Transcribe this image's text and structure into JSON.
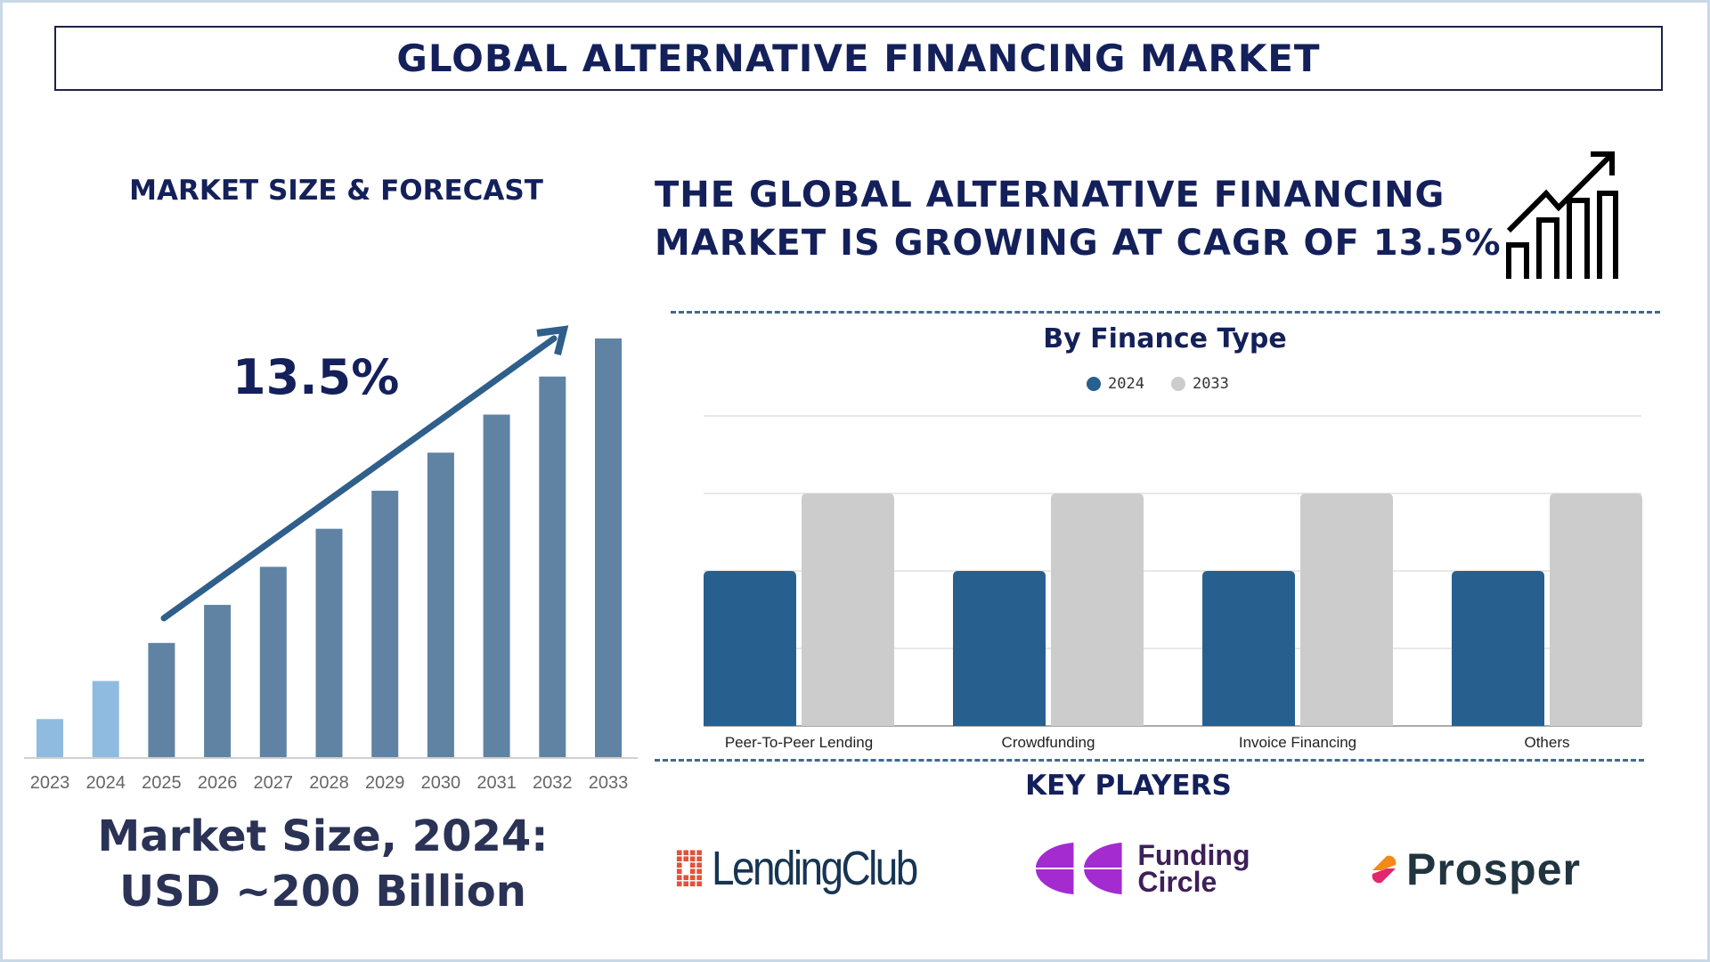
{
  "title": "GLOBAL ALTERNATIVE FINANCING MARKET",
  "left": {
    "subtitle": "MARKET SIZE & FORECAST",
    "cagr_label": "13.5%",
    "market_size_line1": "Market Size, 2024:",
    "market_size_line2": "USD ~200 Billion"
  },
  "headline": {
    "line1": "THE GLOBAL ALTERNATIVE FINANCING",
    "line2": "MARKET IS GROWING AT CAGR OF 13.5%",
    "icon": "growth-chart-icon"
  },
  "key_players": {
    "title": "KEY PLAYERS",
    "logos": [
      "LendingClub",
      "Funding Circle",
      "Prosper"
    ]
  },
  "colors": {
    "navy": "#13205a",
    "bar_forecast": "#6083a3",
    "bar_history": "#8fbbe0",
    "series_2024": "#27608f",
    "series_2033": "#cccccc",
    "arrow": "#2f5f8a"
  },
  "chart_data": [
    {
      "type": "bar",
      "title": "",
      "categories": [
        "2023",
        "2024",
        "2025",
        "2026",
        "2027",
        "2028",
        "2029",
        "2030",
        "2031",
        "2032",
        "2033"
      ],
      "values": [
        1,
        2,
        3,
        4,
        5,
        6,
        7,
        8,
        9,
        10,
        11
      ],
      "highlighted_history": [
        "2023",
        "2024"
      ],
      "annotation": "13.5%",
      "grid": false,
      "ylim": [
        0,
        11
      ]
    },
    {
      "type": "bar",
      "title": "By Finance Type",
      "categories": [
        "Peer-To-Peer Lending",
        "Crowdfunding",
        "Invoice Financing",
        "Others"
      ],
      "series": [
        {
          "name": "2024",
          "values": [
            2,
            2,
            2,
            2
          ]
        },
        {
          "name": "2033",
          "values": [
            3,
            3,
            3,
            3
          ]
        }
      ],
      "ylim": [
        0,
        4
      ],
      "grid": true,
      "legend": "top-center"
    }
  ]
}
